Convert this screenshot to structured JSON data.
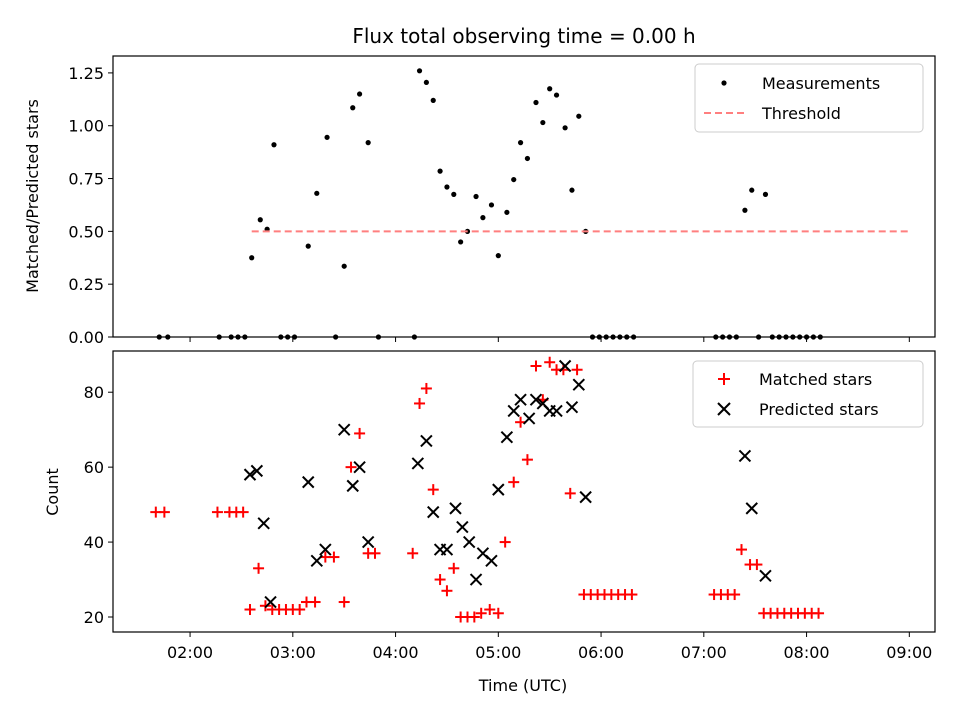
{
  "chart_data": [
    {
      "type": "scatter",
      "title": "Flux total observing time = 0.00 h",
      "xlabel": "",
      "ylabel": "Matched/Predicted stars",
      "xlim": [
        "01:15",
        "09:15"
      ],
      "ylim": [
        0,
        1.33
      ],
      "yticks": [
        "0.00",
        "0.25",
        "0.50",
        "0.75",
        "1.00",
        "1.25"
      ],
      "legend_position": "top-right",
      "series": [
        {
          "name": "Measurements",
          "style": "dot",
          "color": "#000000",
          "points": [
            [
              "01:42",
              0
            ],
            [
              "01:47",
              0
            ],
            [
              "02:17",
              0
            ],
            [
              "02:24",
              0
            ],
            [
              "02:28",
              0
            ],
            [
              "02:32",
              0
            ],
            [
              "02:36",
              0.375
            ],
            [
              "02:41",
              0.555
            ],
            [
              "02:45",
              0.51
            ],
            [
              "02:49",
              0.91
            ],
            [
              "02:53",
              0
            ],
            [
              "02:57",
              0
            ],
            [
              "03:01",
              0
            ],
            [
              "03:09",
              0.43
            ],
            [
              "03:14",
              0.68
            ],
            [
              "03:20",
              0.945
            ],
            [
              "03:25",
              0
            ],
            [
              "03:30",
              0.335
            ],
            [
              "03:35",
              1.085
            ],
            [
              "03:39",
              1.15
            ],
            [
              "03:44",
              0.92
            ],
            [
              "03:50",
              0
            ],
            [
              "04:11",
              0
            ],
            [
              "04:14",
              1.26
            ],
            [
              "04:18",
              1.205
            ],
            [
              "04:22",
              1.12
            ],
            [
              "04:26",
              0.785
            ],
            [
              "04:30",
              0.71
            ],
            [
              "04:34",
              0.675
            ],
            [
              "04:38",
              0.45
            ],
            [
              "04:42",
              0.5
            ],
            [
              "04:47",
              0.665
            ],
            [
              "04:51",
              0.565
            ],
            [
              "04:56",
              0.625
            ],
            [
              "05:00",
              0.385
            ],
            [
              "05:05",
              0.59
            ],
            [
              "05:09",
              0.745
            ],
            [
              "05:13",
              0.92
            ],
            [
              "05:17",
              0.845
            ],
            [
              "05:22",
              1.11
            ],
            [
              "05:26",
              1.015
            ],
            [
              "05:30",
              1.175
            ],
            [
              "05:34",
              1.145
            ],
            [
              "05:39",
              0.99
            ],
            [
              "05:43",
              0.695
            ],
            [
              "05:47",
              1.045
            ],
            [
              "05:51",
              0.5
            ],
            [
              "05:55",
              0
            ],
            [
              "05:59",
              0
            ],
            [
              "06:03",
              0
            ],
            [
              "06:07",
              0
            ],
            [
              "06:11",
              0
            ],
            [
              "06:15",
              0
            ],
            [
              "06:19",
              0
            ],
            [
              "07:07",
              0
            ],
            [
              "07:11",
              0
            ],
            [
              "07:15",
              0
            ],
            [
              "07:19",
              0
            ],
            [
              "07:24",
              0.6
            ],
            [
              "07:28",
              0.695
            ],
            [
              "07:32",
              0
            ],
            [
              "07:36",
              0.675
            ],
            [
              "07:40",
              0
            ],
            [
              "07:44",
              0
            ],
            [
              "07:48",
              0
            ],
            [
              "07:52",
              0
            ],
            [
              "07:56",
              0
            ],
            [
              "08:00",
              0
            ],
            [
              "08:04",
              0
            ],
            [
              "08:08",
              0
            ]
          ]
        },
        {
          "name": "Threshold",
          "style": "dashed-line",
          "color": "#ff7f7f",
          "points": [
            [
              "02:36",
              0.5
            ],
            [
              "09:00",
              0.5
            ]
          ]
        }
      ]
    },
    {
      "type": "scatter",
      "title": "",
      "xlabel": "Time (UTC)",
      "ylabel": "Count",
      "xlim": [
        "01:15",
        "09:15"
      ],
      "ylim": [
        16,
        91
      ],
      "yticks": [
        "20",
        "40",
        "60",
        "80"
      ],
      "xticks": [
        "02:00",
        "03:00",
        "04:00",
        "05:00",
        "06:00",
        "07:00",
        "08:00",
        "09:00"
      ],
      "legend_position": "top-right",
      "series": [
        {
          "name": "Matched stars",
          "marker": "plus",
          "color": "#ff0000",
          "points": [
            [
              "01:40",
              48
            ],
            [
              "01:45",
              48
            ],
            [
              "02:16",
              48
            ],
            [
              "02:23",
              48
            ],
            [
              "02:27",
              48
            ],
            [
              "02:31",
              48
            ],
            [
              "02:35",
              22
            ],
            [
              "02:40",
              33
            ],
            [
              "02:44",
              23
            ],
            [
              "02:48",
              22
            ],
            [
              "02:52",
              22
            ],
            [
              "02:56",
              22
            ],
            [
              "03:00",
              22
            ],
            [
              "03:04",
              22
            ],
            [
              "03:08",
              24
            ],
            [
              "03:13",
              24
            ],
            [
              "03:19",
              36
            ],
            [
              "03:24",
              36
            ],
            [
              "03:30",
              24
            ],
            [
              "03:34",
              60
            ],
            [
              "03:39",
              69
            ],
            [
              "03:44",
              37
            ],
            [
              "03:48",
              37
            ],
            [
              "04:10",
              37
            ],
            [
              "04:14",
              77
            ],
            [
              "04:18",
              81
            ],
            [
              "04:22",
              54
            ],
            [
              "04:26",
              30
            ],
            [
              "04:30",
              27
            ],
            [
              "04:34",
              33
            ],
            [
              "04:38",
              20
            ],
            [
              "04:42",
              20
            ],
            [
              "04:46",
              20
            ],
            [
              "04:50",
              21
            ],
            [
              "04:55",
              22
            ],
            [
              "05:00",
              21
            ],
            [
              "05:04",
              40
            ],
            [
              "05:09",
              56
            ],
            [
              "05:13",
              72
            ],
            [
              "05:17",
              62
            ],
            [
              "05:22",
              87
            ],
            [
              "05:26",
              78
            ],
            [
              "05:30",
              88
            ],
            [
              "05:34",
              86
            ],
            [
              "05:38",
              86
            ],
            [
              "05:42",
              53
            ],
            [
              "05:46",
              86
            ],
            [
              "05:50",
              26
            ],
            [
              "05:54",
              26
            ],
            [
              "05:58",
              26
            ],
            [
              "06:02",
              26
            ],
            [
              "06:06",
              26
            ],
            [
              "06:10",
              26
            ],
            [
              "06:14",
              26
            ],
            [
              "06:18",
              26
            ],
            [
              "07:06",
              26
            ],
            [
              "07:10",
              26
            ],
            [
              "07:14",
              26
            ],
            [
              "07:18",
              26
            ],
            [
              "07:22",
              38
            ],
            [
              "07:27",
              34
            ],
            [
              "07:31",
              34
            ],
            [
              "07:35",
              21
            ],
            [
              "07:39",
              21
            ],
            [
              "07:43",
              21
            ],
            [
              "07:47",
              21
            ],
            [
              "07:51",
              21
            ],
            [
              "07:55",
              21
            ],
            [
              "07:59",
              21
            ],
            [
              "08:03",
              21
            ],
            [
              "08:07",
              21
            ]
          ]
        },
        {
          "name": "Predicted stars",
          "marker": "x",
          "color": "#000000",
          "points": [
            [
              "02:35",
              58
            ],
            [
              "02:39",
              59
            ],
            [
              "02:43",
              45
            ],
            [
              "02:47",
              24
            ],
            [
              "03:09",
              56
            ],
            [
              "03:14",
              35
            ],
            [
              "03:19",
              38
            ],
            [
              "03:30",
              70
            ],
            [
              "03:35",
              55
            ],
            [
              "03:39",
              60
            ],
            [
              "03:44",
              40
            ],
            [
              "04:13",
              61
            ],
            [
              "04:18",
              67
            ],
            [
              "04:22",
              48
            ],
            [
              "04:26",
              38
            ],
            [
              "04:30",
              38
            ],
            [
              "04:35",
              49
            ],
            [
              "04:39",
              44
            ],
            [
              "04:43",
              40
            ],
            [
              "04:47",
              30
            ],
            [
              "04:51",
              37
            ],
            [
              "04:56",
              35
            ],
            [
              "05:00",
              54
            ],
            [
              "05:05",
              68
            ],
            [
              "05:09",
              75
            ],
            [
              "05:13",
              78
            ],
            [
              "05:18",
              73
            ],
            [
              "05:22",
              78
            ],
            [
              "05:26",
              77
            ],
            [
              "05:30",
              75
            ],
            [
              "05:34",
              75
            ],
            [
              "05:39",
              87
            ],
            [
              "05:43",
              76
            ],
            [
              "05:47",
              82
            ],
            [
              "05:51",
              52
            ],
            [
              "07:24",
              63
            ],
            [
              "07:28",
              49
            ],
            [
              "07:36",
              31
            ]
          ]
        }
      ]
    }
  ]
}
